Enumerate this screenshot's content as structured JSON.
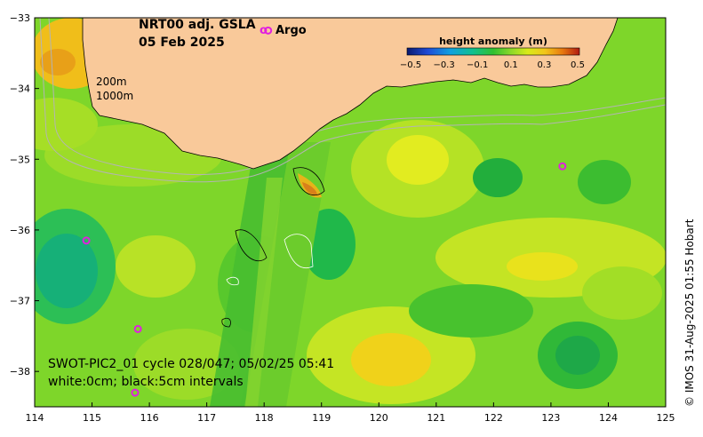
{
  "title": {
    "line1": "NRT00 adj. GSLA",
    "line2": "05 Feb 2025"
  },
  "legend": {
    "argo_symbol": "o",
    "argo_label": "Argo",
    "argo_color": "#e020e0"
  },
  "colorbar": {
    "title": "height anomaly (m)",
    "ticks": [
      "−0.5",
      "−0.3",
      "−0.1",
      "0.1",
      "0.3",
      "0.5"
    ],
    "colors": [
      "#0a1a6e",
      "#1e4ad6",
      "#10a0e0",
      "#10c090",
      "#30c030",
      "#8ad82a",
      "#d8ea1a",
      "#f2c61a",
      "#e87a10",
      "#b01a10"
    ]
  },
  "depth_contours": {
    "label_200m": "200m",
    "label_1000m": "1000m"
  },
  "swot": {
    "line1": "SWOT-PIC2_01 cycle 028/047; 05/02/25 05:41",
    "line2": "white:0cm; black:5cm intervals"
  },
  "axes": {
    "y_ticks": [
      "−33",
      "−34",
      "−35",
      "−36",
      "−37",
      "−38"
    ],
    "x_ticks": [
      "114",
      "115",
      "116",
      "117",
      "118",
      "119",
      "120",
      "121",
      "122",
      "123",
      "124",
      "125"
    ],
    "lon_range": [
      114,
      125
    ],
    "lat_range": [
      -38.5,
      -33
    ]
  },
  "colors": {
    "land": "#f9c99a",
    "ocean_base": "#7ed62a"
  },
  "argo_floats": [
    {
      "lon": 114.9,
      "lat": -36.15
    },
    {
      "lon": 115.8,
      "lat": -37.4
    },
    {
      "lon": 115.75,
      "lat": -38.3
    },
    {
      "lon": 118.07,
      "lat": -33.18
    },
    {
      "lon": 123.2,
      "lat": -35.1
    }
  ],
  "credit": "© IMOS 31-Aug-2025 01:55 Hobart"
}
